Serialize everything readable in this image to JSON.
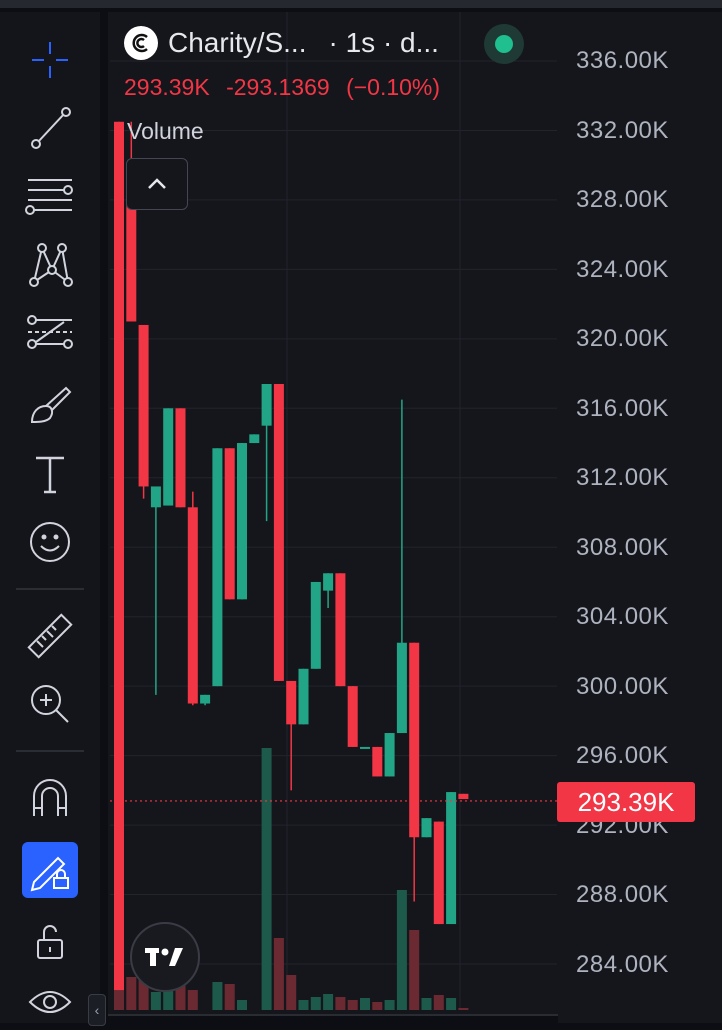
{
  "symbol": {
    "name": "Charity/S...",
    "interval": "· 1s · d...",
    "status_color": "#1fbf8f"
  },
  "price": {
    "last": "293.39K",
    "change": "-293.1369",
    "change_pct": "(−0.10%)",
    "color": "#f23645"
  },
  "volume_label": "Volume",
  "axis_ticks": [
    "336.00K",
    "332.00K",
    "328.00K",
    "324.00K",
    "320.00K",
    "316.00K",
    "312.00K",
    "308.00K",
    "304.00K",
    "300.00K",
    "296.00K",
    "292.00K",
    "288.00K",
    "284.00K"
  ],
  "axis_label": "293.39K",
  "colors": {
    "up": "#22a586",
    "down": "#f23645",
    "background": "#15161c",
    "accent": "#2962ff"
  },
  "toolbar": [
    {
      "name": "crosshair-icon",
      "active": false
    },
    {
      "name": "trend-line-icon",
      "active": false
    },
    {
      "name": "horizontal-lines-icon",
      "active": false
    },
    {
      "name": "patterns-icon",
      "active": false
    },
    {
      "name": "forecast-icon",
      "active": false
    },
    {
      "name": "brush-icon",
      "active": false
    },
    {
      "name": "text-icon",
      "active": false
    },
    {
      "name": "emoji-icon",
      "active": false
    },
    {
      "name": "ruler-icon",
      "active": false
    },
    {
      "name": "zoom-in-icon",
      "active": false
    },
    {
      "name": "magnet-icon",
      "active": false
    },
    {
      "name": "lock-drawing-icon",
      "active": true
    },
    {
      "name": "unlock-icon",
      "active": false
    },
    {
      "name": "eye-icon",
      "active": false
    }
  ],
  "chart_data": {
    "type": "candlestick",
    "ylim": [
      282500,
      337500
    ],
    "candles": [
      {
        "o": 332500,
        "h": 332500,
        "c": 282500,
        "l": 282500
      },
      {
        "o": 330000,
        "h": 332500,
        "c": 321000,
        "l": 321000
      },
      {
        "o": 320800,
        "h": 320800,
        "c": 311500,
        "l": 310800
      },
      {
        "o": 310300,
        "h": 311500,
        "c": 311500,
        "l": 299500
      },
      {
        "o": 310400,
        "h": 316000,
        "c": 316000,
        "l": 310400
      },
      {
        "o": 316000,
        "h": 316000,
        "c": 310300,
        "l": 310300
      },
      {
        "o": 310300,
        "h": 311200,
        "c": 299000,
        "l": 298900
      },
      {
        "o": 299000,
        "h": 299500,
        "c": 299500,
        "l": 298900
      },
      {
        "o": 300000,
        "h": 313700,
        "c": 313700,
        "l": 300000
      },
      {
        "o": 313700,
        "h": 313700,
        "c": 305000,
        "l": 305000
      },
      {
        "o": 305000,
        "h": 314000,
        "c": 314000,
        "l": 305000
      },
      {
        "o": 314000,
        "h": 314500,
        "c": 314500,
        "l": 314000
      },
      {
        "o": 315000,
        "h": 317400,
        "c": 317400,
        "l": 309500
      },
      {
        "o": 317400,
        "h": 317400,
        "c": 300300,
        "l": 300300
      },
      {
        "o": 300300,
        "h": 300300,
        "c": 297800,
        "l": 294000
      },
      {
        "o": 297800,
        "h": 301000,
        "c": 301000,
        "l": 297800
      },
      {
        "o": 301000,
        "h": 306000,
        "c": 306000,
        "l": 301000
      },
      {
        "o": 305500,
        "h": 306500,
        "c": 306500,
        "l": 304500
      },
      {
        "o": 306500,
        "h": 306500,
        "c": 300000,
        "l": 300000
      },
      {
        "o": 300000,
        "h": 300000,
        "c": 296500,
        "l": 296500
      },
      {
        "o": 296500,
        "h": 296500,
        "c": 296500,
        "l": 296500
      },
      {
        "o": 296500,
        "h": 296500,
        "c": 294800,
        "l": 294800
      },
      {
        "o": 294800,
        "h": 297300,
        "c": 297300,
        "l": 294800
      },
      {
        "o": 297300,
        "h": 316500,
        "c": 302500,
        "l": 297300
      },
      {
        "o": 302500,
        "h": 302500,
        "c": 291300,
        "l": 287600
      },
      {
        "o": 291300,
        "h": 292400,
        "c": 292400,
        "l": 291300
      },
      {
        "o": 292200,
        "h": 292200,
        "c": 286300,
        "l": 286300
      },
      {
        "o": 286300,
        "h": 293900,
        "c": 293900,
        "l": 286300
      },
      {
        "o": 293800,
        "h": 293800,
        "c": 293500,
        "l": 293500
      }
    ],
    "volume": [
      48,
      33,
      30,
      18,
      24,
      27,
      20,
      0,
      28,
      26,
      10,
      0,
      262,
      72,
      35,
      10,
      13,
      16,
      13,
      10,
      12,
      8,
      10,
      120,
      80,
      12,
      15,
      12,
      2
    ]
  }
}
